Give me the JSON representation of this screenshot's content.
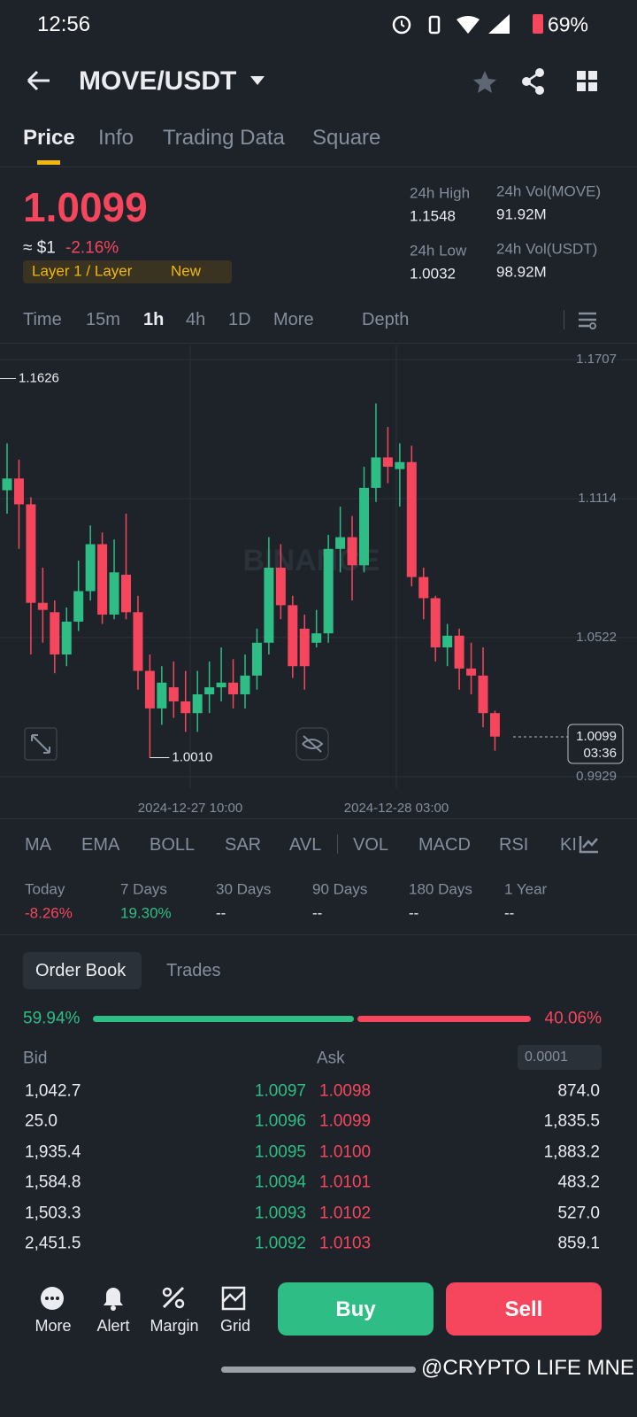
{
  "status_bar": {
    "time": "12:56",
    "battery": "69%"
  },
  "header": {
    "pair": "MOVE/USDT"
  },
  "tabs": [
    "Price",
    "Info",
    "Trading Data",
    "Square"
  ],
  "price": {
    "last": "1.0099",
    "usd": "≈ $1",
    "change": "-2.16%",
    "tag": "Layer 1 / Layer",
    "tag_badge": "New"
  },
  "stats": [
    {
      "label": "24h High",
      "value": "1.1548"
    },
    {
      "label": "24h Vol(MOVE)",
      "value": "91.92M"
    },
    {
      "label": "24h Low",
      "value": "1.0032"
    },
    {
      "label": "24h Vol(USDT)",
      "value": "98.92M"
    }
  ],
  "intervals": [
    "Time",
    "15m",
    "1h",
    "4h",
    "1D",
    "More",
    "Depth"
  ],
  "chart_data": {
    "type": "candlestick",
    "watermark": "BINANCE",
    "open": [
      1.115,
      1.12,
      1.109,
      1.067,
      1.063,
      1.045,
      1.059,
      1.072,
      1.092,
      1.062,
      1.079,
      1.063,
      1.038,
      1.022,
      1.031,
      1.025,
      1.02,
      1.028,
      1.031,
      1.033,
      1.028,
      1.036,
      1.05,
      1.082,
      1.066,
      1.056,
      1.05,
      1.054,
      1.09,
      1.095,
      1.083,
      1.116,
      1.129,
      1.124,
      1.127,
      1.078,
      1.069,
      1.048,
      1.053,
      1.039,
      1.036,
      1.02
    ],
    "high": [
      1.135,
      1.128,
      1.112,
      1.082,
      1.068,
      1.065,
      1.085,
      1.1,
      1.097,
      1.094,
      1.105,
      1.07,
      1.045,
      1.04,
      1.042,
      1.038,
      1.038,
      1.042,
      1.048,
      1.043,
      1.045,
      1.056,
      1.095,
      1.092,
      1.07,
      1.062,
      1.064,
      1.096,
      1.108,
      1.104,
      1.125,
      1.152,
      1.142,
      1.135,
      1.134,
      1.082,
      1.07,
      1.058,
      1.056,
      1.05,
      1.048,
      1.021
    ],
    "low": [
      1.105,
      1.09,
      1.045,
      1.05,
      1.037,
      1.04,
      1.055,
      1.068,
      1.058,
      1.06,
      1.06,
      1.03,
      1.001,
      1.015,
      1.018,
      1.012,
      1.012,
      1.02,
      1.025,
      1.022,
      1.022,
      1.03,
      1.045,
      1.06,
      1.035,
      1.03,
      1.048,
      1.05,
      1.08,
      1.068,
      1.08,
      1.11,
      1.118,
      1.108,
      1.074,
      1.06,
      1.042,
      1.04,
      1.03,
      1.028,
      1.014,
      1.004
    ],
    "close": [
      1.12,
      1.109,
      1.067,
      1.064,
      1.045,
      1.059,
      1.072,
      1.092,
      1.062,
      1.08,
      1.063,
      1.038,
      1.022,
      1.033,
      1.025,
      1.02,
      1.028,
      1.031,
      1.033,
      1.028,
      1.036,
      1.05,
      1.082,
      1.066,
      1.04,
      1.04,
      1.054,
      1.09,
      1.095,
      1.083,
      1.116,
      1.129,
      1.125,
      1.127,
      1.078,
      1.069,
      1.048,
      1.053,
      1.039,
      1.036,
      1.02,
      1.01
    ],
    "ylim": [
      0.9929,
      1.1707
    ],
    "yticks": [
      1.1707,
      1.1114,
      1.0522,
      0.9929
    ],
    "high_marker": 1.1626,
    "low_marker": {
      "value": 1.001,
      "label": "1.0010"
    },
    "last_price": 1.0099,
    "countdown": "03:36",
    "x_labels": [
      "2024-12-27 10:00",
      "2024-12-28 03:00"
    ],
    "up_color": "#2ebd85",
    "down_color": "#f6465d"
  },
  "indicators": [
    "MA",
    "EMA",
    "BOLL",
    "SAR",
    "AVL",
    "VOL",
    "MACD",
    "RSI",
    "KI"
  ],
  "performance": [
    {
      "period": "Today",
      "change": "-8.26%"
    },
    {
      "period": "7 Days",
      "change": "19.30%"
    },
    {
      "period": "30 Days",
      "change": "--"
    },
    {
      "period": "90 Days",
      "change": "--"
    },
    {
      "period": "180 Days",
      "change": "--"
    },
    {
      "period": "1 Year",
      "change": "--"
    }
  ],
  "order_book": {
    "tabs": [
      "Order Book",
      "Trades"
    ],
    "bid_ratio": "59.94%",
    "ask_ratio": "40.06%",
    "bid_header": "Bid",
    "ask_header": "Ask",
    "precision": "0.0001",
    "rows": [
      [
        "1,042.7",
        "1.0097",
        "1.0098",
        "874.0"
      ],
      [
        "25.0",
        "1.0096",
        "1.0099",
        "1,835.5"
      ],
      [
        "1,935.4",
        "1.0095",
        "1.0100",
        "1,883.2"
      ],
      [
        "1,584.8",
        "1.0094",
        "1.0101",
        "483.2"
      ],
      [
        "1,503.3",
        "1.0093",
        "1.0102",
        "527.0"
      ],
      [
        "2,451.5",
        "1.0092",
        "1.0103",
        "859.1"
      ]
    ]
  },
  "bottom": {
    "actions": [
      "More",
      "Alert",
      "Margin",
      "Grid"
    ],
    "buy": "Buy",
    "sell": "Sell"
  },
  "watermark": "@CRYPTO LIFE MNE"
}
